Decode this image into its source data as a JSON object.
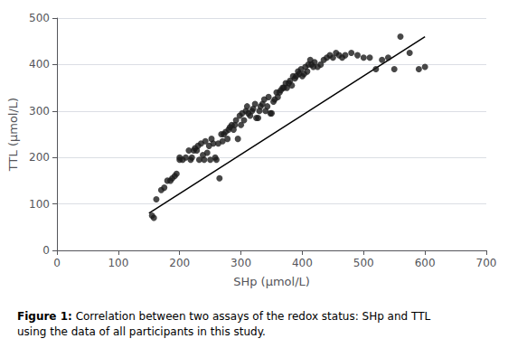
{
  "chart_data": {
    "type": "scatter",
    "xlabel": "SHp (μmol/L)",
    "ylabel": "TTL (μmol/L)",
    "annotations": [
      "Figure 1:",
      " Correlation between two assays of the redox status: SHp and TTL\nusing the data of all participants in this study."
    ],
    "xlim": [
      0,
      700
    ],
    "ylim": [
      0,
      500
    ],
    "xticks": [
      0,
      100,
      200,
      300,
      400,
      500,
      600,
      700
    ],
    "yticks": [
      0,
      100,
      200,
      300,
      400,
      500
    ],
    "grid": "y",
    "series": [
      {
        "type": "scatter",
        "color": "#1a1a1a",
        "marker": "circle",
        "x": [
          155,
          158,
          162,
          170,
          175,
          180,
          185,
          188,
          192,
          195,
          200,
          200,
          205,
          210,
          215,
          218,
          220,
          223,
          225,
          228,
          230,
          232,
          235,
          238,
          240,
          242,
          245,
          248,
          250,
          252,
          255,
          258,
          260,
          263,
          265,
          268,
          270,
          272,
          275,
          278,
          280,
          282,
          285,
          288,
          290,
          292,
          295,
          298,
          300,
          302,
          305,
          308,
          310,
          312,
          315,
          318,
          320,
          323,
          325,
          328,
          330,
          332,
          335,
          338,
          340,
          343,
          345,
          348,
          350,
          353,
          355,
          358,
          360,
          363,
          365,
          368,
          370,
          373,
          375,
          378,
          380,
          383,
          385,
          388,
          390,
          393,
          395,
          398,
          400,
          403,
          405,
          408,
          410,
          413,
          415,
          418,
          420,
          425,
          430,
          435,
          440,
          445,
          450,
          455,
          460,
          465,
          470,
          480,
          490,
          500,
          510,
          520,
          530,
          540,
          550,
          560,
          575,
          590,
          600
        ],
        "values": [
          75,
          70,
          110,
          130,
          135,
          150,
          150,
          155,
          160,
          165,
          195,
          200,
          195,
          200,
          215,
          195,
          200,
          215,
          220,
          215,
          225,
          195,
          230,
          205,
          195,
          235,
          210,
          225,
          195,
          240,
          230,
          200,
          195,
          230,
          155,
          250,
          235,
          250,
          255,
          240,
          260,
          265,
          270,
          260,
          270,
          280,
          240,
          290,
          270,
          295,
          280,
          300,
          310,
          295,
          290,
          300,
          305,
          315,
          285,
          285,
          300,
          310,
          315,
          325,
          300,
          310,
          330,
          295,
          295,
          320,
          325,
          340,
          330,
          340,
          345,
          350,
          350,
          360,
          350,
          360,
          365,
          355,
          375,
          370,
          375,
          385,
          380,
          390,
          375,
          380,
          395,
          385,
          400,
          410,
          400,
          395,
          405,
          395,
          400,
          410,
          415,
          420,
          415,
          425,
          420,
          415,
          420,
          425,
          420,
          415,
          415,
          390,
          410,
          415,
          390,
          460,
          425,
          390,
          395
        ]
      },
      {
        "type": "line",
        "color": "#000000",
        "line_style": "solid",
        "x": [
          150,
          600
        ],
        "values": [
          80,
          460
        ]
      }
    ]
  }
}
